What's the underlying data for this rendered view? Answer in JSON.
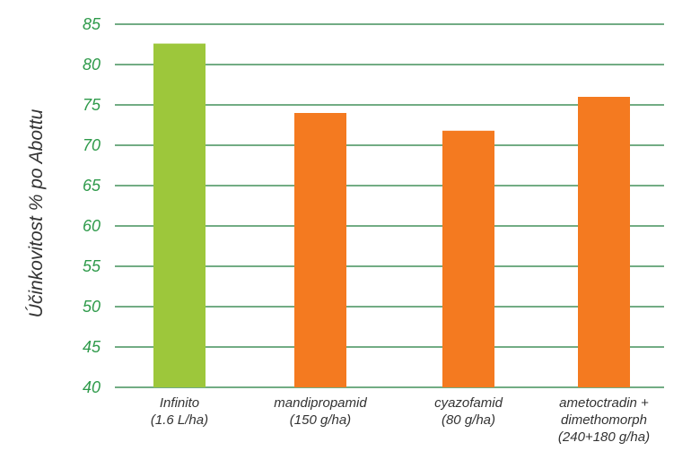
{
  "chart_data": {
    "type": "bar",
    "title": "",
    "xlabel": "",
    "ylabel": "Účinkovitost % po Abottu",
    "ylim": [
      40,
      85
    ],
    "yticks": [
      40,
      45,
      50,
      55,
      60,
      65,
      70,
      75,
      80,
      85
    ],
    "categories": [
      [
        "Infinito",
        "(1.6 L/ha)"
      ],
      [
        "mandipropamid",
        "(150 g/ha)"
      ],
      [
        "cyazofamid",
        "(80 g/ha)"
      ],
      [
        "ametoctradin +",
        "dimethomorph",
        "(240+180 g/ha)"
      ]
    ],
    "values": [
      82.6,
      74.0,
      71.8,
      76.0
    ],
    "bar_colors": [
      "#9dc73b",
      "#f47a20",
      "#f47a20",
      "#f47a20"
    ],
    "grid": true,
    "grid_color": "#1e7b3a",
    "tick_color": "#2e9a4a",
    "legend": "none"
  }
}
